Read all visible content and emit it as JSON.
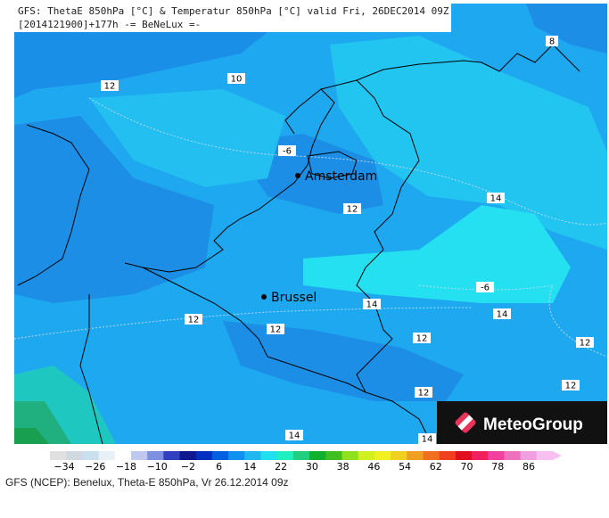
{
  "header": {
    "line1": "GFS: ThetaE 850hPa [°C] & Temperatur 850hPa [°C] valid Fri, 26DEC2014 09Z",
    "line2": "[2014121900]+177h -= BeNeLux =-"
  },
  "contour_labels": [
    "12",
    "10",
    "8",
    "-6",
    "12",
    "14",
    "-6",
    "14",
    "14",
    "12",
    "12",
    "12",
    "12",
    "12",
    "12",
    "14",
    "14"
  ],
  "cities": [
    "Amsterdam",
    "Brussel"
  ],
  "logo": "MeteoGroup",
  "colorbar": {
    "labels": [
      "−34",
      "−26",
      "−18",
      "−10",
      "−2",
      "6",
      "14",
      "22",
      "30",
      "38",
      "46",
      "54",
      "62",
      "70",
      "78",
      "86"
    ]
  },
  "caption": "GFS (NCEP): Benelux, Theta-E 850hPa, Vr 26.12.2014 09z"
}
